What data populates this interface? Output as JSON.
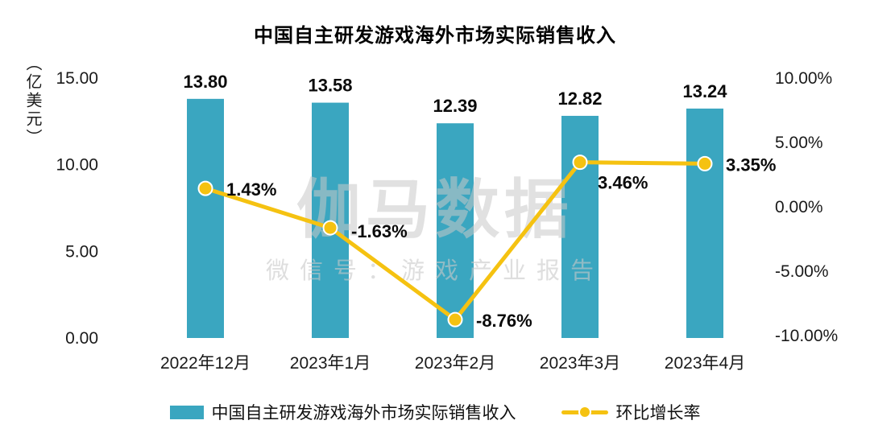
{
  "chart_data": {
    "type": "bar",
    "combo": "bar+line",
    "title": "中国自主研发游戏海外市场实际销售收入",
    "left_axis": {
      "unit_label": "（亿美元）",
      "ticks": [
        "15.00",
        "10.00",
        "5.00",
        "0.00"
      ],
      "min": 0,
      "max": 15
    },
    "right_axis": {
      "ticks": [
        "10.00%",
        "5.00%",
        "0.00%",
        "-5.00%",
        "-10.00%"
      ],
      "min": -10,
      "max": 10
    },
    "categories": [
      "2022年12月",
      "2023年1月",
      "2023年2月",
      "2023年3月",
      "2023年4月"
    ],
    "series": [
      {
        "name": "中国自主研发游戏海外市场实际销售收入",
        "type": "bar",
        "color": "#3AA6C0",
        "values": [
          13.8,
          13.58,
          12.39,
          12.82,
          13.24
        ],
        "labels": [
          "13.80",
          "13.58",
          "12.39",
          "12.82",
          "13.24"
        ]
      },
      {
        "name": "环比增长率",
        "type": "line",
        "color": "#F5C211",
        "values": [
          1.43,
          -1.63,
          -8.76,
          3.46,
          3.35
        ],
        "labels": [
          "1.43%",
          "-1.63%",
          "-8.76%",
          "3.46%",
          "3.35%"
        ]
      }
    ],
    "legend": [
      "中国自主研发游戏海外市场实际销售收入",
      "环比增长率"
    ],
    "watermark": {
      "line1": "伽马数据",
      "line2": "微信号：游戏产业报告"
    },
    "grid": "off",
    "legend_position": "bottom"
  }
}
